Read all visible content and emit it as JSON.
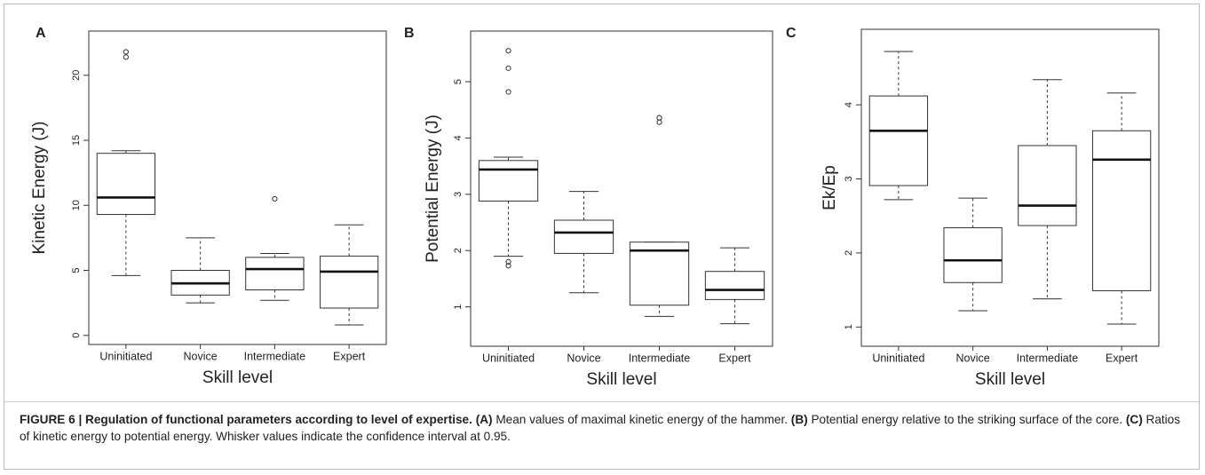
{
  "chart_data": [
    {
      "type": "box",
      "panel_label": "A",
      "ylabel": "Kinetic Energy (J)",
      "xlabel": "Skill level",
      "categories": [
        "Uninitiated",
        "Novice",
        "Intermediate",
        "Expert"
      ],
      "boxes": [
        {
          "whisker_low": 4.6,
          "q1": 9.3,
          "median": 10.6,
          "q3": 14.0,
          "whisker_high": 14.2,
          "outliers": [
            21.4,
            21.8
          ]
        },
        {
          "whisker_low": 2.5,
          "q1": 3.1,
          "median": 4.0,
          "q3": 5.0,
          "whisker_high": 7.5,
          "outliers": []
        },
        {
          "whisker_low": 2.7,
          "q1": 3.5,
          "median": 5.1,
          "q3": 6.0,
          "whisker_high": 6.3,
          "outliers": [
            10.5
          ]
        },
        {
          "whisker_low": 0.8,
          "q1": 2.1,
          "median": 4.9,
          "q3": 6.1,
          "whisker_high": 8.5,
          "outliers": []
        }
      ],
      "ylim": [
        -0.7,
        23.4
      ],
      "yticks": [
        0,
        5,
        10,
        15,
        20
      ]
    },
    {
      "type": "box",
      "panel_label": "B",
      "ylabel": "Potential Energy (J)",
      "xlabel": "Skill level",
      "categories": [
        "Uninitiated",
        "Novice",
        "Intermediate",
        "Expert"
      ],
      "boxes": [
        {
          "whisker_low": 1.9,
          "q1": 2.88,
          "median": 3.44,
          "q3": 3.6,
          "whisker_high": 3.66,
          "outliers": [
            1.73,
            1.8,
            4.82,
            5.24,
            5.55
          ]
        },
        {
          "whisker_low": 1.25,
          "q1": 1.95,
          "median": 2.32,
          "q3": 2.54,
          "whisker_high": 3.05,
          "outliers": []
        },
        {
          "whisker_low": 0.83,
          "q1": 1.03,
          "median": 2.0,
          "q3": 2.15,
          "whisker_high": 2.15,
          "outliers": [
            4.28,
            4.36
          ]
        },
        {
          "whisker_low": 0.7,
          "q1": 1.13,
          "median": 1.3,
          "q3": 1.63,
          "whisker_high": 2.05,
          "outliers": []
        }
      ],
      "ylim": [
        0.3,
        5.9
      ],
      "yticks": [
        1,
        2,
        3,
        4,
        5
      ]
    },
    {
      "type": "box",
      "panel_label": "C",
      "ylabel": "Ek/Ep",
      "xlabel": "Skill level",
      "categories": [
        "Uninitiated",
        "Novice",
        "Intermediate",
        "Expert"
      ],
      "boxes": [
        {
          "whisker_low": 2.72,
          "q1": 2.91,
          "median": 3.65,
          "q3": 4.12,
          "whisker_high": 4.72,
          "outliers": []
        },
        {
          "whisker_low": 1.22,
          "q1": 1.6,
          "median": 1.9,
          "q3": 2.34,
          "whisker_high": 2.74,
          "outliers": []
        },
        {
          "whisker_low": 1.38,
          "q1": 2.37,
          "median": 2.64,
          "q3": 3.45,
          "whisker_high": 4.34,
          "outliers": []
        },
        {
          "whisker_low": 1.04,
          "q1": 1.49,
          "median": 3.26,
          "q3": 3.65,
          "whisker_high": 4.16,
          "outliers": []
        }
      ],
      "ylim": [
        0.74,
        5.02
      ],
      "yticks": [
        1,
        2,
        3,
        4
      ]
    }
  ],
  "caption": [
    {
      "text": "FIGURE 6 | Regulation of functional parameters according to level of expertise.",
      "bold": true
    },
    {
      "text": " ",
      "bold": false
    },
    {
      "text": "(A)",
      "bold": true
    },
    {
      "text": " Mean values of maximal kinetic energy of the hammer. ",
      "bold": false
    },
    {
      "text": "(B)",
      "bold": true
    },
    {
      "text": " Potential energy relative to the striking surface of the core. ",
      "bold": false
    },
    {
      "text": "(C)",
      "bold": true
    },
    {
      "text": " Ratios of kinetic energy to potential energy. Whisker values indicate the confidence interval at 0.95.",
      "bold": false
    }
  ]
}
